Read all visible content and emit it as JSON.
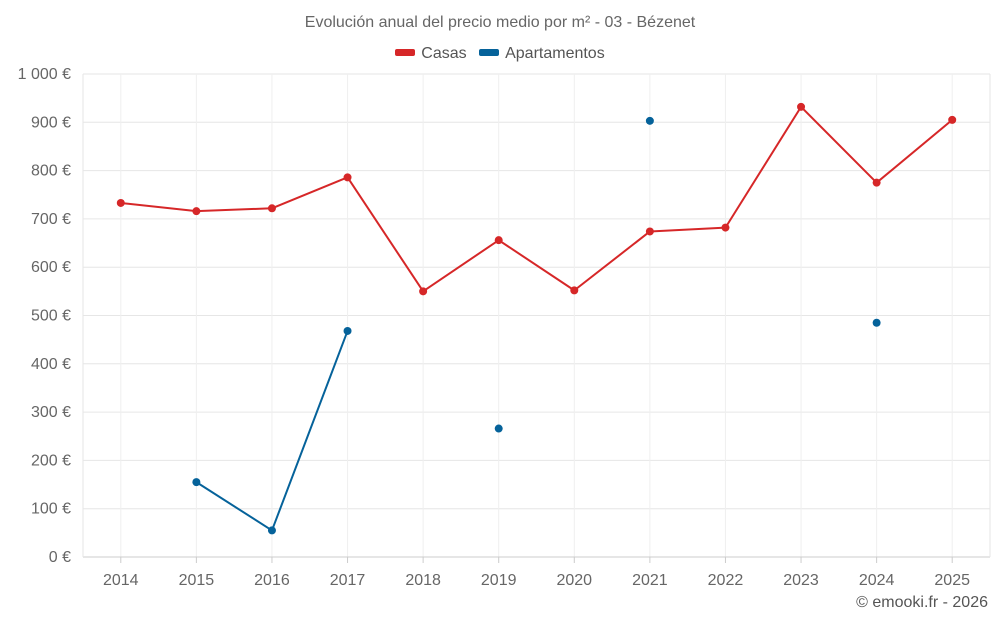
{
  "chart_data": {
    "type": "line",
    "title": "Evolución anual del precio medio por m² - 03 - Bézenet",
    "xlabel": "",
    "ylabel": "",
    "categories": [
      "2014",
      "2015",
      "2016",
      "2017",
      "2018",
      "2019",
      "2020",
      "2021",
      "2022",
      "2023",
      "2024",
      "2025"
    ],
    "ylim": [
      0,
      1000
    ],
    "yticks": [
      0,
      100,
      200,
      300,
      400,
      500,
      600,
      700,
      800,
      900,
      1000
    ],
    "ytick_labels": [
      "0 €",
      "100 €",
      "200 €",
      "300 €",
      "400 €",
      "500 €",
      "600 €",
      "700 €",
      "800 €",
      "900 €",
      "1 000 €"
    ],
    "grid": true,
    "legend_position": "top-center",
    "series": [
      {
        "name": "Casas",
        "color": "#d62728",
        "values": [
          733,
          716,
          722,
          786,
          550,
          656,
          552,
          674,
          682,
          932,
          775,
          905
        ]
      },
      {
        "name": "Apartamentos",
        "color": "#05629a",
        "values": [
          null,
          155,
          55,
          468,
          null,
          266,
          null,
          903,
          null,
          null,
          485,
          null
        ]
      }
    ]
  },
  "footer": {
    "credit": "© emooki.fr - 2026"
  }
}
